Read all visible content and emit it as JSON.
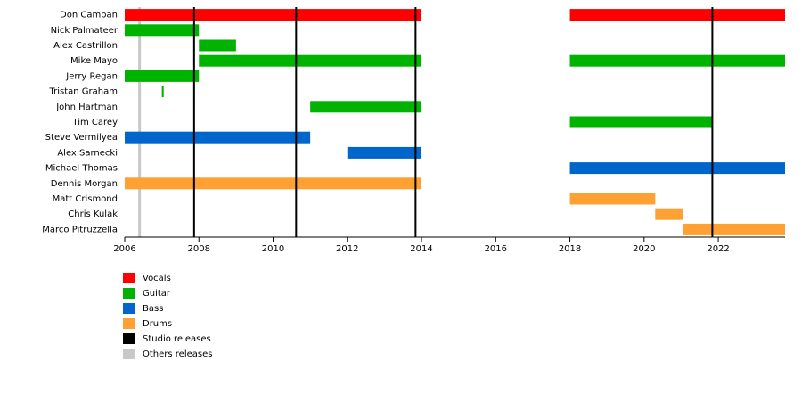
{
  "chart_data": {
    "type": "timeline",
    "members": [
      "Don Campan",
      "Nick Palmateer",
      "Alex Castrillon",
      "Mike Mayo",
      "Jerry Regan",
      "Tristan Graham",
      "John Hartman",
      "Tim Carey",
      "Steve Vermilyea",
      "Alex Sarnecki",
      "Michael Thomas",
      "Dennis Morgan",
      "Matt Crismond",
      "Chris Kulak",
      "Marco Pitruzzella"
    ],
    "roles": [
      {
        "name": "Vocals",
        "color": "#ff0000"
      },
      {
        "name": "Guitar",
        "color": "#00b300"
      },
      {
        "name": "Bass",
        "color": "#0066cc"
      },
      {
        "name": "Drums",
        "color": "#ffa033"
      },
      {
        "name": "Studio releases",
        "color": "#000000"
      },
      {
        "name": "Others releases",
        "color": "#c8c8c8"
      }
    ],
    "segments": [
      {
        "member": 0,
        "role": 0,
        "start": 2006,
        "end": 2014
      },
      {
        "member": 0,
        "role": 0,
        "start": 2018,
        "end": 2023.8
      },
      {
        "member": 1,
        "role": 1,
        "start": 2006,
        "end": 2008
      },
      {
        "member": 2,
        "role": 1,
        "start": 2008,
        "end": 2009
      },
      {
        "member": 3,
        "role": 1,
        "start": 2008,
        "end": 2014
      },
      {
        "member": 3,
        "role": 1,
        "start": 2018,
        "end": 2023.8
      },
      {
        "member": 4,
        "role": 1,
        "start": 2006,
        "end": 2008
      },
      {
        "member": 5,
        "role": 1,
        "start": 2007,
        "end": 2007.05
      },
      {
        "member": 6,
        "role": 1,
        "start": 2011,
        "end": 2014
      },
      {
        "member": 7,
        "role": 1,
        "start": 2018,
        "end": 2021.85
      },
      {
        "member": 8,
        "role": 2,
        "start": 2006,
        "end": 2011
      },
      {
        "member": 9,
        "role": 2,
        "start": 2012,
        "end": 2014
      },
      {
        "member": 10,
        "role": 2,
        "start": 2018,
        "end": 2023.8
      },
      {
        "member": 11,
        "role": 3,
        "start": 2006,
        "end": 2014
      },
      {
        "member": 12,
        "role": 3,
        "start": 2018,
        "end": 2020.3
      },
      {
        "member": 13,
        "role": 3,
        "start": 2020.3,
        "end": 2021.05
      },
      {
        "member": 14,
        "role": 3,
        "start": 2021.05,
        "end": 2023.8
      }
    ],
    "studio_releases": [
      2007.87,
      2010.62,
      2013.84,
      2021.84
    ],
    "other_releases": [
      2006.4
    ],
    "xlim": [
      2006,
      2023.8
    ],
    "xticks": [
      2006,
      2008,
      2010,
      2012,
      2014,
      2016,
      2018,
      2020,
      2022
    ]
  }
}
